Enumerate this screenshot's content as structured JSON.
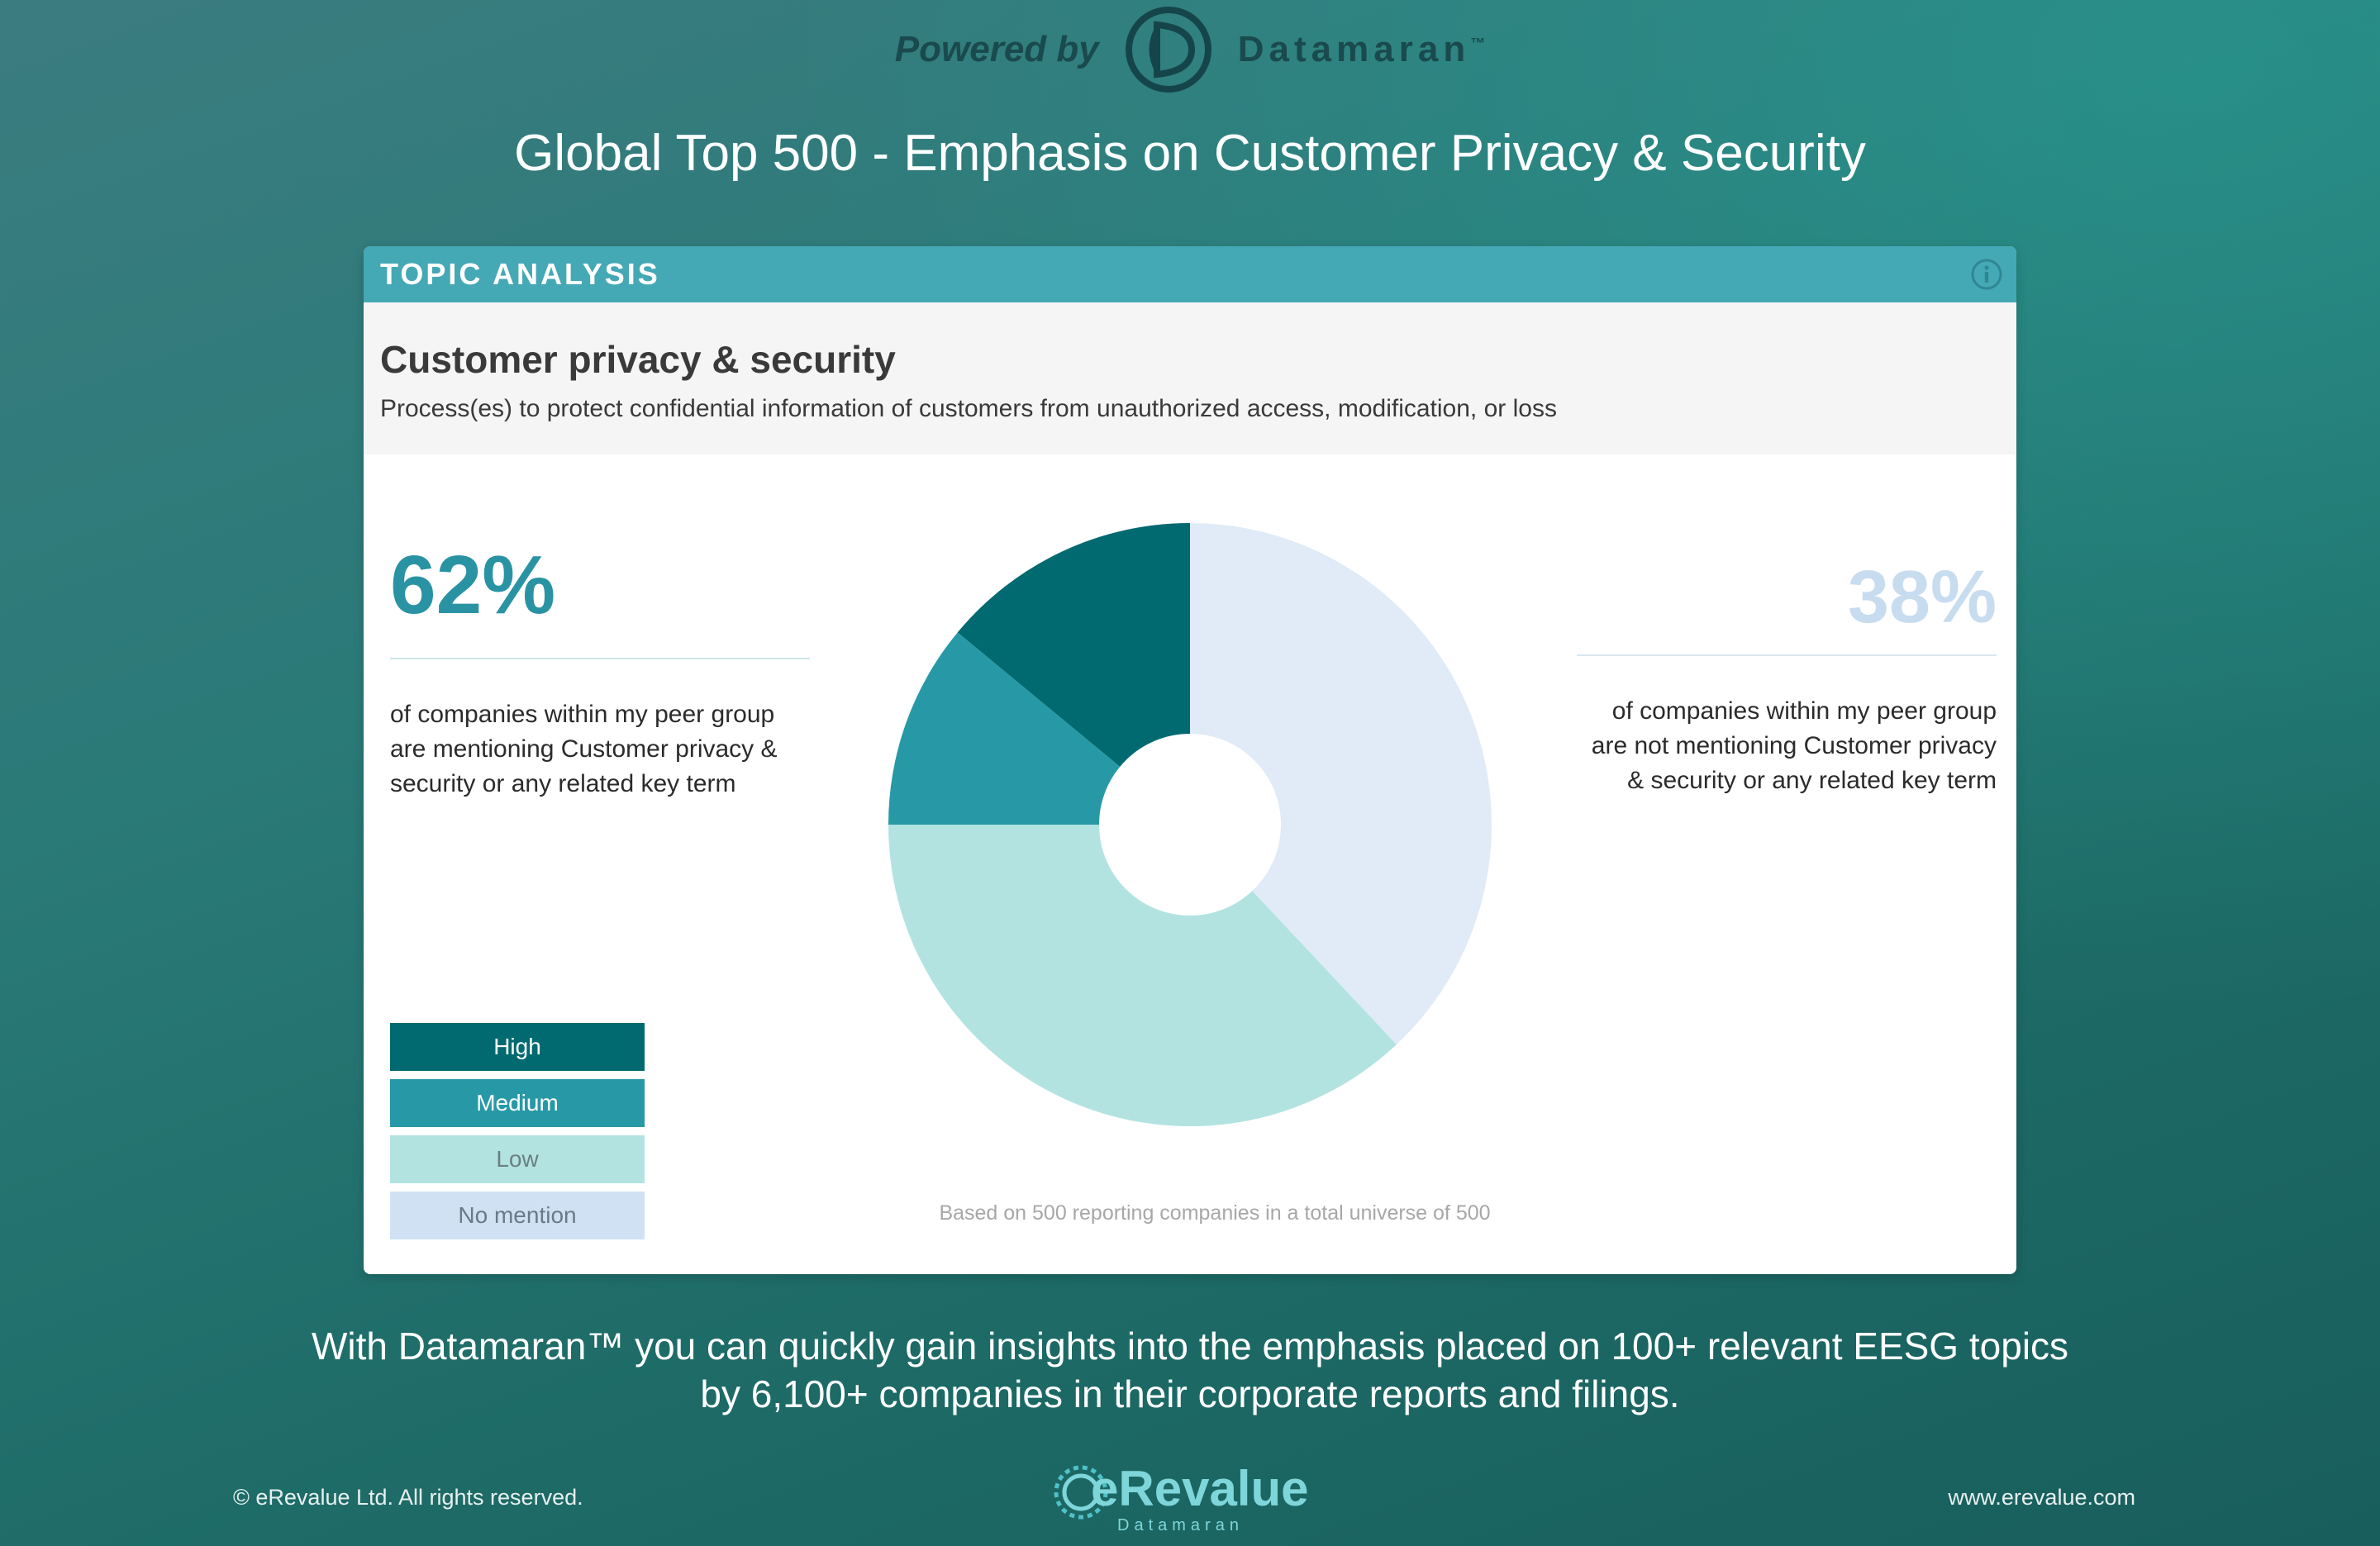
{
  "header": {
    "powered_by": "Powered by",
    "brand": "Datamaran",
    "brand_tm": "™"
  },
  "title": "Global Top 500 - Emphasis on Customer Privacy & Security",
  "card": {
    "header_label": "TOPIC ANALYSIS",
    "info_icon": "info-icon",
    "topic_title": "Customer privacy & security",
    "topic_description": "Process(es) to protect confidential information of customers from unauthorized access, modification, or loss",
    "left_percent": "62%",
    "left_text": "of companies within my peer group are mentioning Customer privacy & security or any related key term",
    "right_percent": "38%",
    "right_text": "of companies within my peer group are not mentioning Customer privacy & security or any related key term",
    "footnote": "Based on 500 reporting companies in a total universe of 500"
  },
  "legend": [
    {
      "label": "High",
      "color": "#006a70",
      "text_color": "#ffffff"
    },
    {
      "label": "Medium",
      "color": "#2799a6",
      "text_color": "#ffffff"
    },
    {
      "label": "Low",
      "color": "#b2e3e1",
      "text_color": "#6b7f80"
    },
    {
      "label": "No mention",
      "color": "#d0e1f4",
      "text_color": "#6b7a88"
    }
  ],
  "chart_data": {
    "type": "pie",
    "title": "",
    "slices": [
      {
        "label": "No mention",
        "value": 38,
        "color": "#e0ebf7"
      },
      {
        "label": "Low",
        "value": 37,
        "color": "#b2e3e1"
      },
      {
        "label": "Medium",
        "value": 11,
        "color": "#2799a6"
      },
      {
        "label": "High",
        "value": 14,
        "color": "#006a70"
      }
    ],
    "start": "12 o'clock, clockwise",
    "donut_hole": true,
    "legend_placement": "bottom-left"
  },
  "bottom_text_line1": "With Datamaran™ you can quickly gain insights into the emphasis placed on 100+ relevant EESG topics",
  "bottom_text_line2": "by 6,100+ companies in their corporate reports and filings.",
  "footer": {
    "copyright": "© eRevalue Ltd. All rights reserved.",
    "website": "www.erevalue.com",
    "logo_main": "eRevalue",
    "logo_sub": "Datamaran"
  }
}
